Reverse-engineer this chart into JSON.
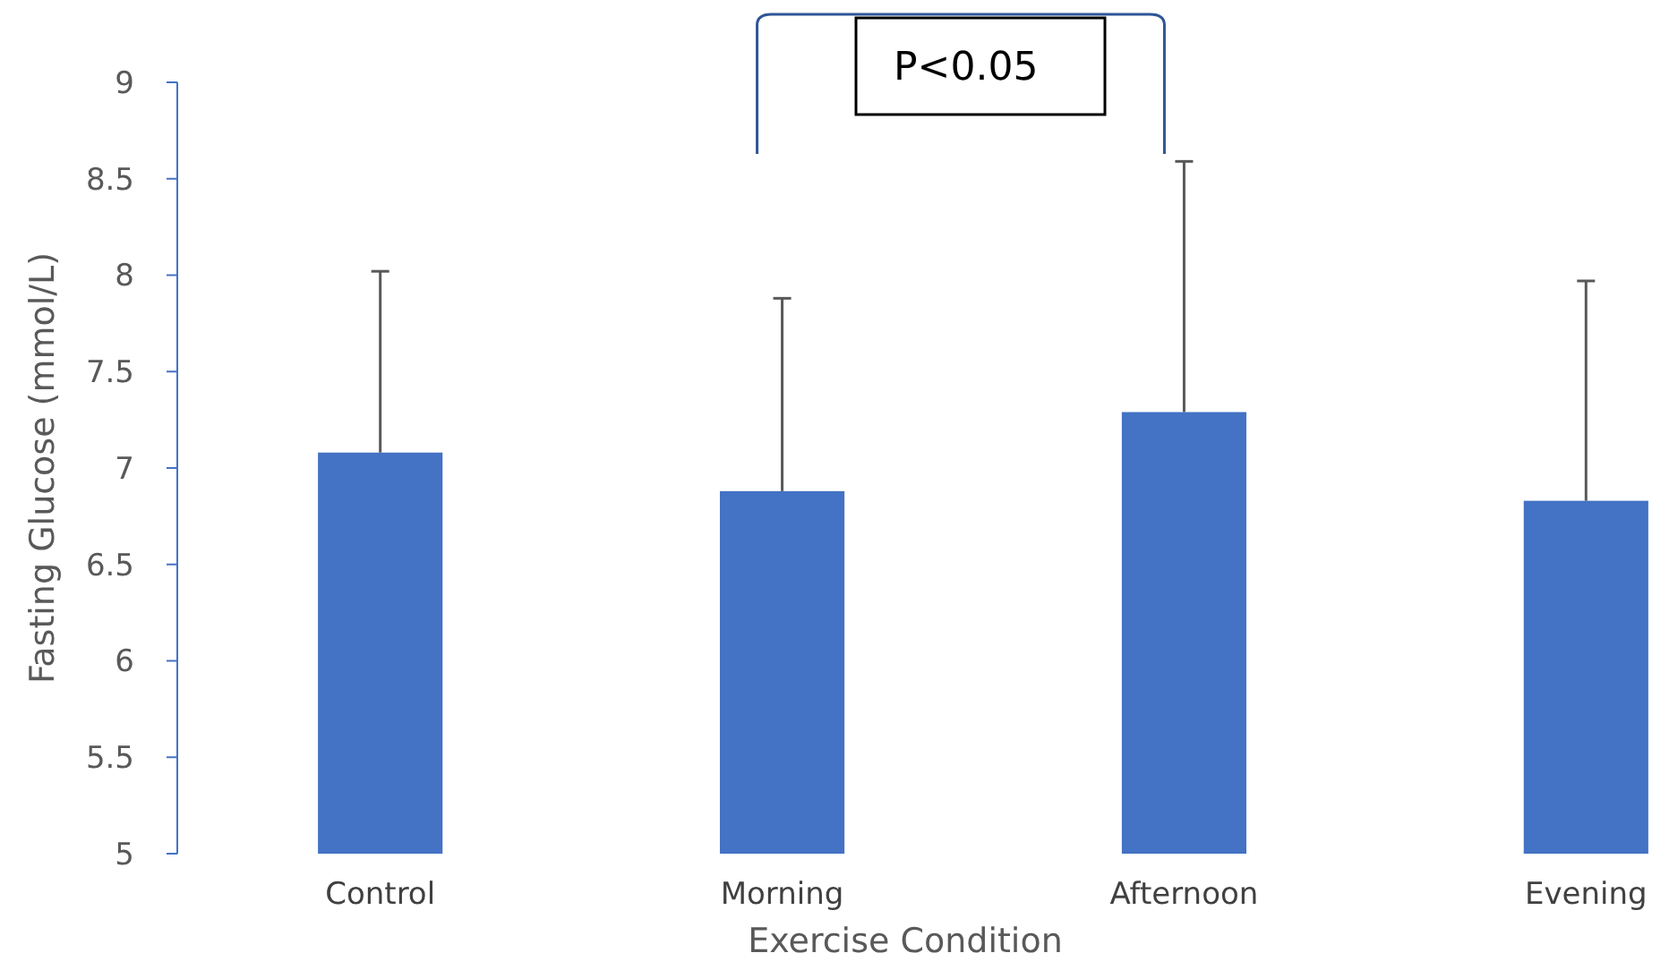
{
  "chart_data": {
    "type": "bar",
    "xlabel": "Exercise Condition",
    "ylabel": "Fasting Glucose (mmol/L)",
    "categories": [
      "Control",
      "Morning",
      "Afternoon",
      "Evening"
    ],
    "values": [
      7.08,
      6.88,
      7.29,
      6.83
    ],
    "errors": [
      [
        7.08,
        8.02
      ],
      [
        6.88,
        7.88
      ],
      [
        7.29,
        8.59
      ],
      [
        6.83,
        7.97
      ]
    ],
    "color": "#4472c4",
    "ylim": [
      5,
      9
    ],
    "yticks": [
      5,
      5.5,
      6,
      6.5,
      7,
      7.5,
      8,
      8.5,
      9
    ],
    "annotations": [
      "P<0.05"
    ],
    "grid": false
  }
}
